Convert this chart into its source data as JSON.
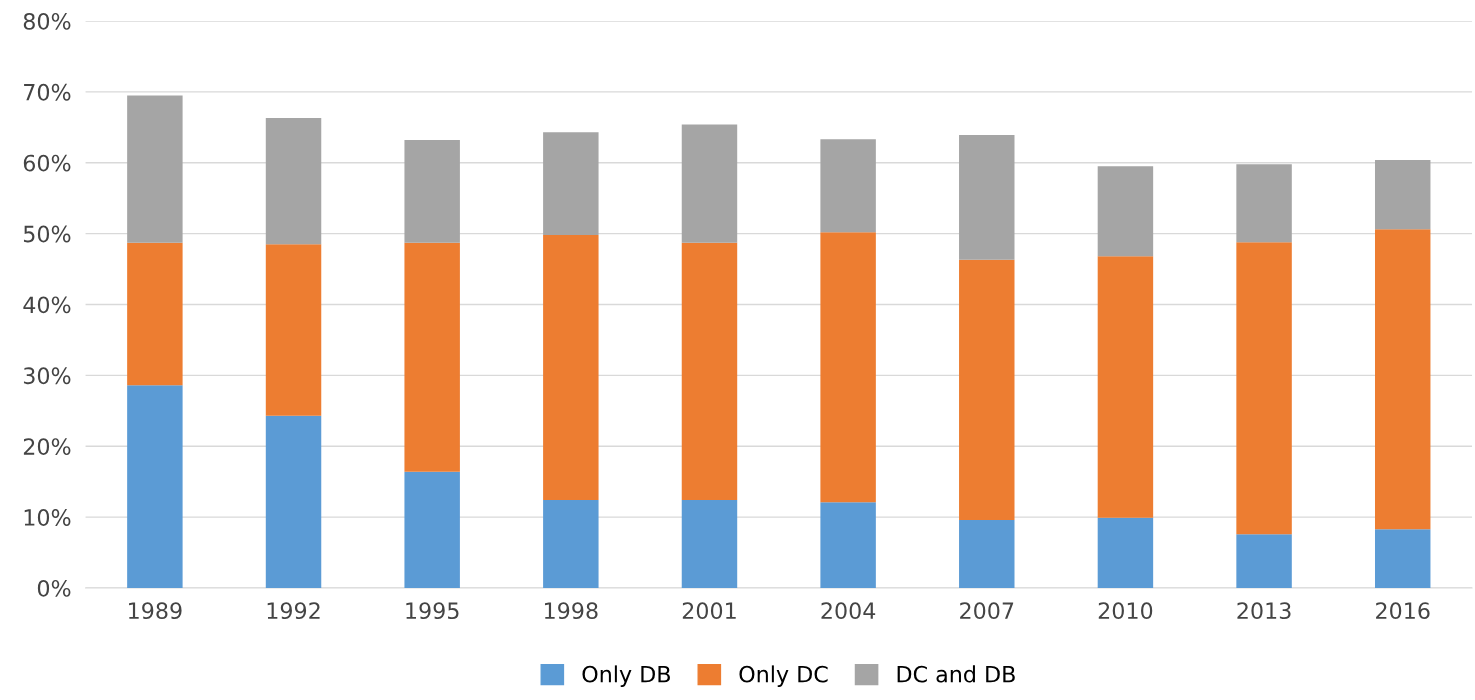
{
  "chart_data": {
    "type": "bar",
    "stacked": true,
    "categories": [
      "1989",
      "1992",
      "1995",
      "1998",
      "2001",
      "2004",
      "2007",
      "2010",
      "2013",
      "2016"
    ],
    "series": [
      {
        "name": "Only DB",
        "color": "#5b9bd5",
        "values": [
          28.6,
          24.3,
          16.4,
          12.4,
          12.4,
          12.1,
          9.6,
          9.9,
          7.6,
          8.3
        ]
      },
      {
        "name": "Only DC",
        "color": "#ed7d31",
        "values": [
          20.1,
          24.2,
          32.3,
          37.4,
          36.3,
          38.1,
          36.7,
          36.9,
          41.2,
          42.3
        ]
      },
      {
        "name": "DC and DB",
        "color": "#a5a5a5",
        "values": [
          20.8,
          17.8,
          14.5,
          14.5,
          16.7,
          13.1,
          17.6,
          12.7,
          11.0,
          9.8
        ]
      }
    ],
    "ylim": [
      0,
      80
    ],
    "yticks": [
      {
        "value": 0,
        "label": "0%"
      },
      {
        "value": 10,
        "label": "10%"
      },
      {
        "value": 20,
        "label": "20%"
      },
      {
        "value": 30,
        "label": "30%"
      },
      {
        "value": 40,
        "label": "40%"
      },
      {
        "value": 50,
        "label": "50%"
      },
      {
        "value": 60,
        "label": "60%"
      },
      {
        "value": 70,
        "label": "70%"
      },
      {
        "value": 80,
        "label": "80%"
      }
    ],
    "grid": "y",
    "legend": "bottom"
  }
}
